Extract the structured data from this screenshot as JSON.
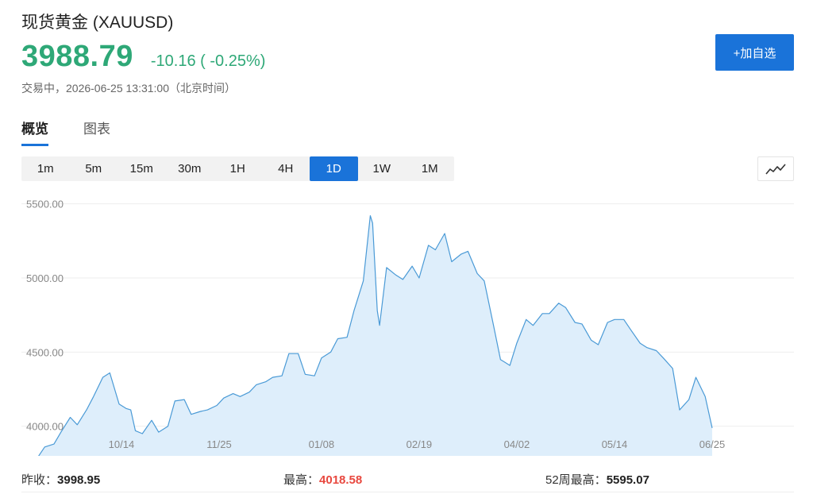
{
  "header": {
    "title": "现货黄金 (XAUUSD)",
    "price": "3988.79",
    "change": "-10.16 ( -0.25%)",
    "status": "交易中，2026-06-25 13:31:00（北京时间）",
    "add_button": "+加自选"
  },
  "tabs": [
    {
      "label": "概览",
      "active": true
    },
    {
      "label": "图表",
      "active": false
    }
  ],
  "intervals": [
    "1m",
    "5m",
    "15m",
    "30m",
    "1H",
    "4H",
    "1D",
    "1W",
    "1M"
  ],
  "active_interval": "1D",
  "chart_type_icon": "line-chart-icon",
  "colors": {
    "up": "#e8483f",
    "down": "#2ea877",
    "accent": "#1a73d9",
    "line": "#4a9ad6",
    "area": "#deeefb"
  },
  "chart_data": {
    "type": "area",
    "title": "",
    "xlabel": "",
    "ylabel": "",
    "ylim": [
      3800,
      5600
    ],
    "yticks": [
      4000,
      4500,
      5000,
      5500
    ],
    "ytick_labels": [
      "4000.00",
      "4500.00",
      "5000.00",
      "5500.00"
    ],
    "grid": true,
    "x_start": "2025-09-01",
    "x_end": "2026-06-25",
    "xticks": [
      {
        "date": "2025-10-14",
        "label": "10/14"
      },
      {
        "date": "2025-11-25",
        "label": "11/25"
      },
      {
        "date": "2026-01-08",
        "label": "01/08"
      },
      {
        "date": "2026-02-19",
        "label": "02/19"
      },
      {
        "date": "2026-04-02",
        "label": "04/02"
      },
      {
        "date": "2026-05-14",
        "label": "05/14"
      },
      {
        "date": "2026-06-25",
        "label": "06/25"
      }
    ],
    "series": [
      {
        "x": [
          "2025-09-01",
          "2025-09-04",
          "2025-09-08",
          "2025-09-11",
          "2025-09-15",
          "2025-09-18",
          "2025-09-22",
          "2025-09-25",
          "2025-09-29",
          "2025-10-02",
          "2025-10-06",
          "2025-10-09",
          "2025-10-13",
          "2025-10-16",
          "2025-10-18",
          "2025-10-20",
          "2025-10-23",
          "2025-10-27",
          "2025-10-30",
          "2025-11-03",
          "2025-11-06",
          "2025-11-10",
          "2025-11-13",
          "2025-11-17",
          "2025-11-20",
          "2025-11-24",
          "2025-11-27",
          "2025-12-01",
          "2025-12-04",
          "2025-12-08",
          "2025-12-11",
          "2025-12-15",
          "2025-12-18",
          "2025-12-22",
          "2025-12-25",
          "2025-12-29",
          "2026-01-01",
          "2026-01-05",
          "2026-01-08",
          "2026-01-12",
          "2026-01-15",
          "2026-01-19",
          "2026-01-22",
          "2026-01-26",
          "2026-01-29",
          "2026-01-30",
          "2026-02-01",
          "2026-02-02",
          "2026-02-05",
          "2026-02-09",
          "2026-02-12",
          "2026-02-16",
          "2026-02-19",
          "2026-02-23",
          "2026-02-26",
          "2026-03-02",
          "2026-03-05",
          "2026-03-09",
          "2026-03-12",
          "2026-03-16",
          "2026-03-19",
          "2026-03-23",
          "2026-03-26",
          "2026-03-30",
          "2026-04-02",
          "2026-04-06",
          "2026-04-09",
          "2026-04-13",
          "2026-04-16",
          "2026-04-20",
          "2026-04-23",
          "2026-04-27",
          "2026-04-30",
          "2026-05-04",
          "2026-05-07",
          "2026-05-11",
          "2026-05-14",
          "2026-05-18",
          "2026-05-21",
          "2026-05-25",
          "2026-05-28",
          "2026-06-01",
          "2026-06-04",
          "2026-06-08",
          "2026-06-11",
          "2026-06-15",
          "2026-06-18",
          "2026-06-22",
          "2026-06-25"
        ],
        "y": [
          3670,
          3740,
          3790,
          3860,
          3880,
          3960,
          4060,
          4010,
          4110,
          4200,
          4330,
          4360,
          4150,
          4120,
          4110,
          3970,
          3950,
          4040,
          3960,
          4000,
          4170,
          4180,
          4080,
          4100,
          4110,
          4140,
          4190,
          4220,
          4200,
          4230,
          4280,
          4300,
          4330,
          4340,
          4490,
          4490,
          4350,
          4340,
          4460,
          4500,
          4590,
          4600,
          4780,
          4980,
          5420,
          5370,
          4780,
          4680,
          5070,
          5020,
          4990,
          5080,
          5000,
          5220,
          5190,
          5300,
          5110,
          5160,
          5180,
          5030,
          4980,
          4680,
          4450,
          4410,
          4560,
          4720,
          4680,
          4760,
          4760,
          4830,
          4800,
          4700,
          4690,
          4580,
          4550,
          4700,
          4720,
          4720,
          4650,
          4560,
          4530,
          4510,
          4460,
          4390,
          4110,
          4180,
          4330,
          4200,
          3988
        ]
      }
    ]
  },
  "stats": {
    "prev_close_label": "昨收：",
    "prev_close": "3998.95",
    "high_label": "最高：",
    "high": "4018.58",
    "week52_high_label": "52周最高：",
    "week52_high": "5595.07"
  }
}
